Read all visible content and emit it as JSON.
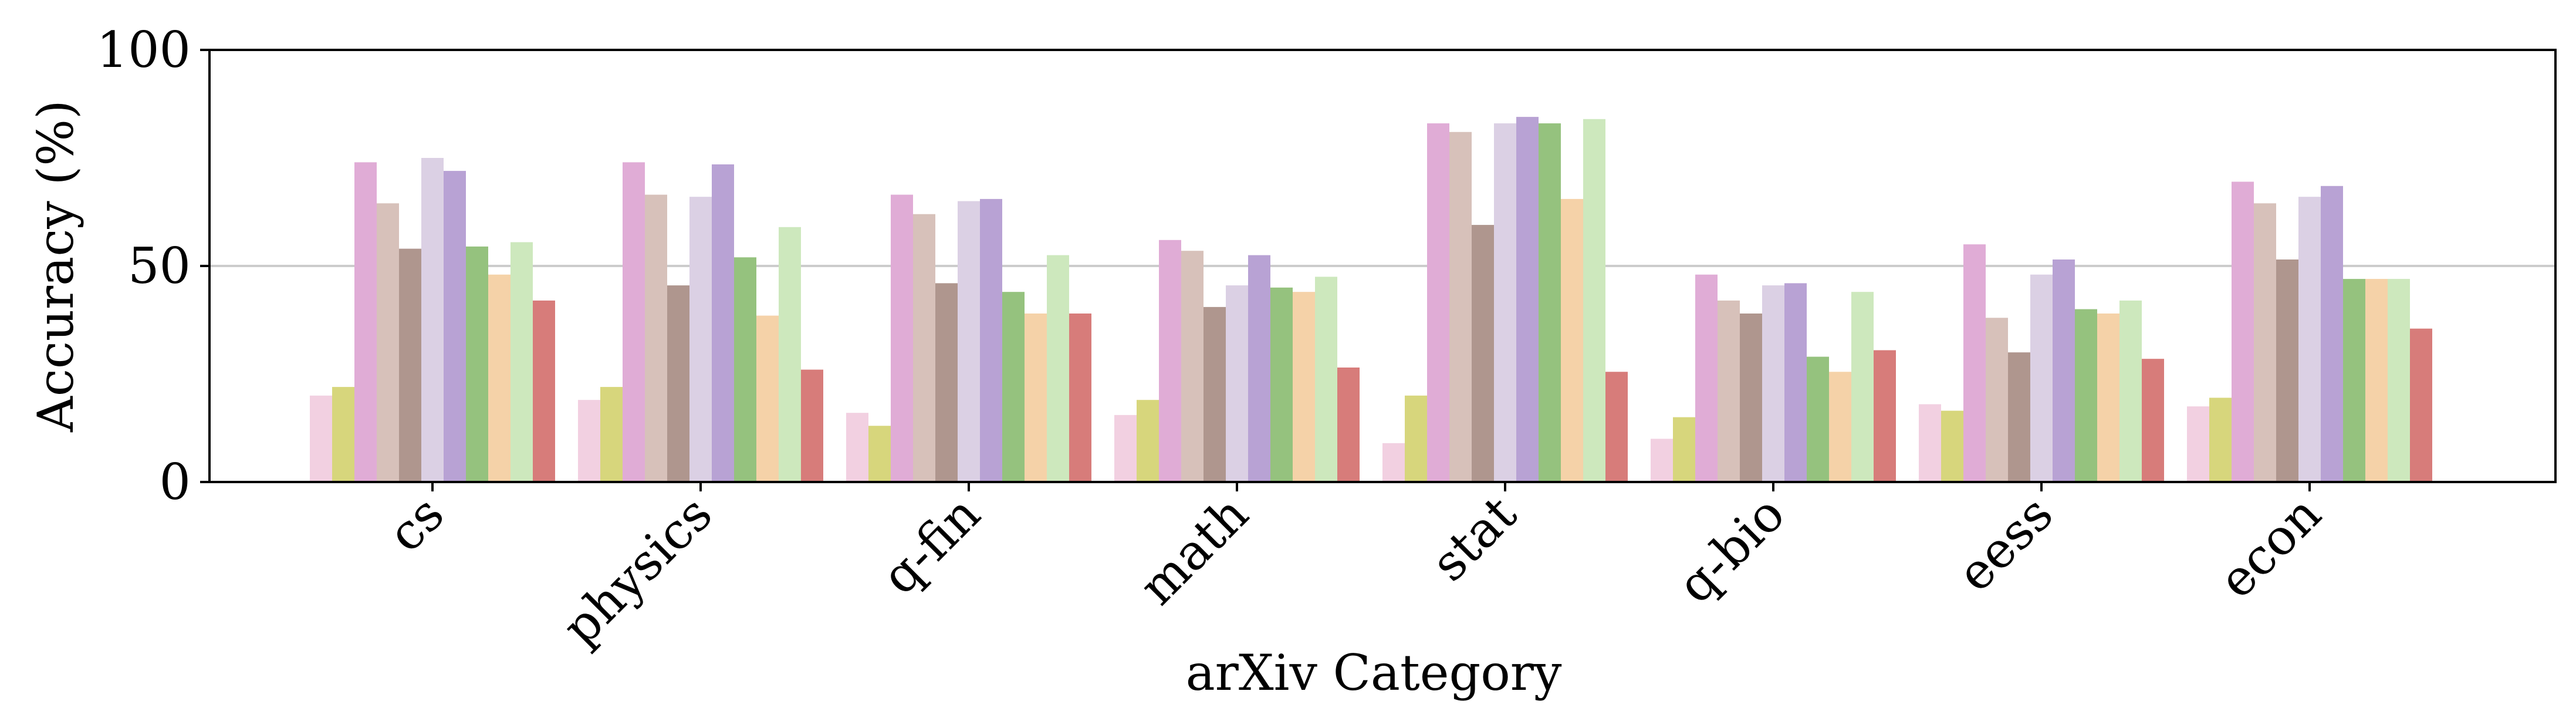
{
  "chart_data": {
    "type": "bar",
    "xlabel": "arXiv Category",
    "ylabel": "Accuracy (%)",
    "ylim": [
      0,
      100
    ],
    "yticks": [
      0,
      50,
      100
    ],
    "reference_line": 50,
    "grid": false,
    "legend": "none",
    "categories": [
      "cs",
      "physics",
      "q-fin",
      "math",
      "stat",
      "q-bio",
      "eess",
      "econ"
    ],
    "series": [
      {
        "color": "#f2d0e1",
        "values": [
          20,
          19,
          16,
          15.5,
          9,
          10,
          18,
          17.5
        ]
      },
      {
        "color": "#d7d67c",
        "values": [
          22,
          22,
          13,
          19,
          20,
          15,
          16.5,
          19.5
        ]
      },
      {
        "color": "#e0acd6",
        "values": [
          74,
          74,
          66.5,
          56,
          83,
          48,
          55,
          69.5
        ]
      },
      {
        "color": "#d7c1ba",
        "values": [
          64.5,
          66.5,
          62,
          53.5,
          81,
          42,
          38,
          64.5
        ]
      },
      {
        "color": "#af968e",
        "values": [
          54,
          45.5,
          46,
          40.5,
          59.5,
          39,
          30,
          51.5
        ]
      },
      {
        "color": "#dbd0e4",
        "values": [
          75,
          66,
          65,
          45.5,
          83,
          45.5,
          48,
          66
        ]
      },
      {
        "color": "#b8a2d4",
        "values": [
          72,
          73.5,
          65.5,
          52.5,
          84.5,
          46,
          51.5,
          68.5
        ]
      },
      {
        "color": "#95c27e",
        "values": [
          54.5,
          52,
          44,
          45,
          83,
          29,
          40,
          47
        ]
      },
      {
        "color": "#f5d2a8",
        "values": [
          48,
          38.5,
          39,
          44,
          65.5,
          25.5,
          39,
          47
        ]
      },
      {
        "color": "#cde8bd",
        "values": [
          55.5,
          59,
          52.5,
          47.5,
          84,
          44,
          42,
          47
        ]
      },
      {
        "color": "#d77c7a",
        "values": [
          42,
          26,
          39,
          26.5,
          25.5,
          30.5,
          28.5,
          35.5
        ]
      }
    ]
  }
}
